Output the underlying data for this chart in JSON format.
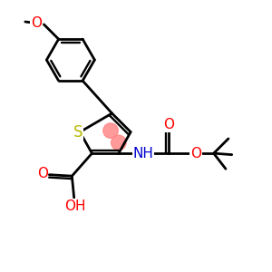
{
  "background": "#ffffff",
  "bond_color": "#000000",
  "S_color": "#b8b800",
  "O_color": "#ff0000",
  "N_color": "#0000cc",
  "highlight_color": "#ff8888",
  "line_width": 2.0,
  "figsize": [
    3.0,
    3.0
  ],
  "dpi": 100,
  "xlim": [
    0,
    10
  ],
  "ylim": [
    0,
    10
  ]
}
